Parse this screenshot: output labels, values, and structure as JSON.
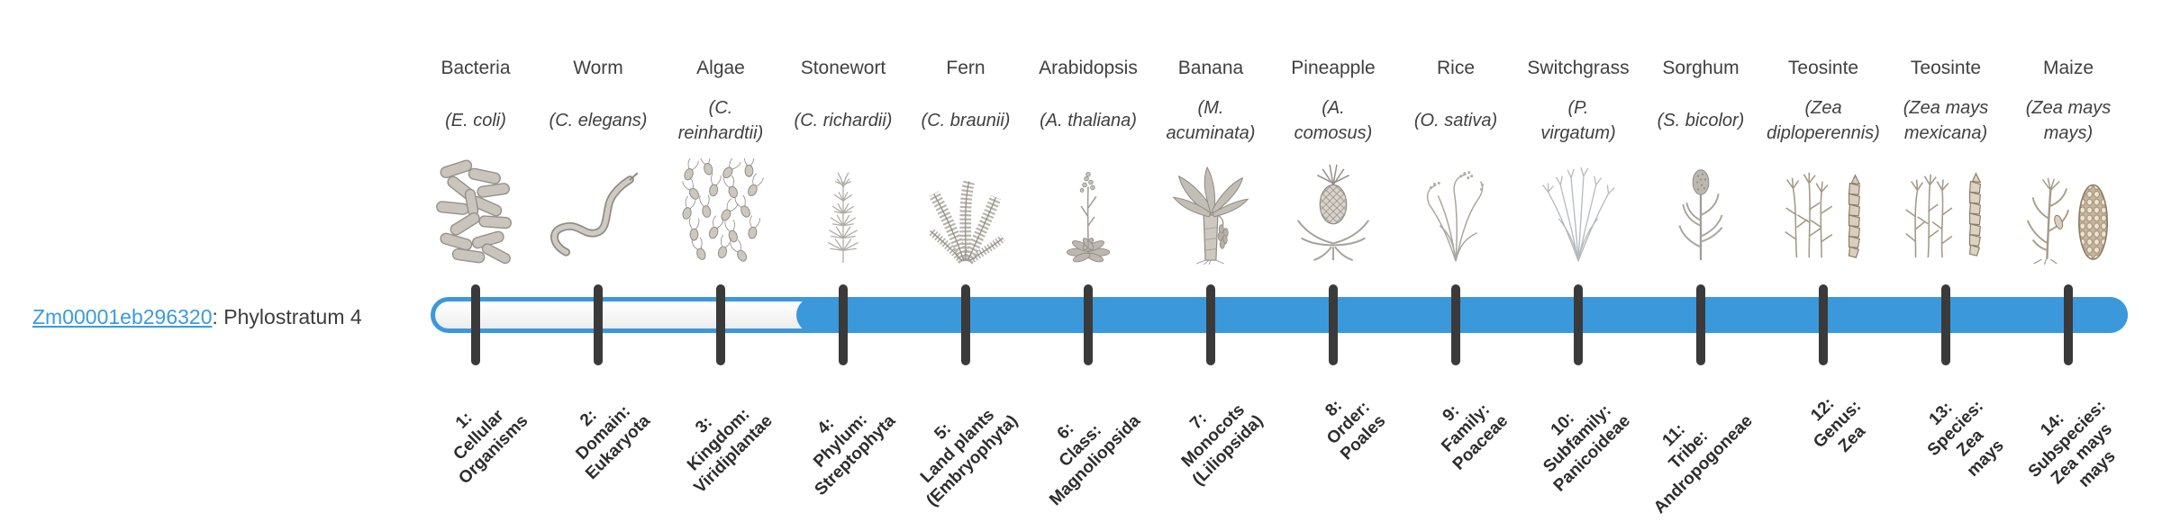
{
  "gene": {
    "id_link": "Zm00001eb296320",
    "suffix": ": Phylostratum 4",
    "link_color": "#3b9ade",
    "text_color": "#3d3d3d"
  },
  "timeline": {
    "bar_color": "#3b99db",
    "tick_color": "#3a3a3a",
    "filled_from_stratum": 4,
    "strata_count": 14
  },
  "organisms": [
    {
      "common": "Bacteria",
      "scientific_lines": [
        "(E. coli)"
      ],
      "icon": "bacteria",
      "stratum": {
        "lines": [
          "1:",
          "Cellular",
          "Organisms"
        ]
      }
    },
    {
      "common": "Worm",
      "scientific_lines": [
        "(C. elegans)"
      ],
      "icon": "worm",
      "stratum": {
        "lines": [
          "2:",
          "Domain:",
          "Eukaryota"
        ]
      }
    },
    {
      "common": "Algae",
      "scientific_lines": [
        "(C.",
        "reinhardtii)"
      ],
      "icon": "algae",
      "stratum": {
        "lines": [
          "3:",
          "Kingdom:",
          "Viridiplantae"
        ]
      }
    },
    {
      "common": "Stonewort",
      "scientific_lines": [
        "(C. richardii)"
      ],
      "icon": "stonewort",
      "stratum": {
        "lines": [
          "4:",
          "Phylum:",
          "Streptophyta"
        ]
      }
    },
    {
      "common": "Fern",
      "scientific_lines": [
        "(C. braunii)"
      ],
      "icon": "fern",
      "stratum": {
        "lines": [
          "5:",
          "Land plants",
          "(Embryophyta)"
        ]
      }
    },
    {
      "common": "Arabidopsis",
      "scientific_lines": [
        "(A. thaliana)"
      ],
      "icon": "arabidopsis",
      "stratum": {
        "lines": [
          "6:",
          "Class:",
          "Magnoliopsida"
        ]
      }
    },
    {
      "common": "Banana",
      "scientific_lines": [
        "(M.",
        "acuminata)"
      ],
      "icon": "banana",
      "stratum": {
        "lines": [
          "7:",
          "Monocots",
          "(Liliopsida)"
        ]
      }
    },
    {
      "common": "Pineapple",
      "scientific_lines": [
        "(A.",
        "comosus)"
      ],
      "icon": "pineapple",
      "stratum": {
        "lines": [
          "8:",
          "Order:",
          "Poales"
        ]
      }
    },
    {
      "common": "Rice",
      "scientific_lines": [
        "(O. sativa)"
      ],
      "icon": "rice",
      "stratum": {
        "lines": [
          "9:",
          "Family:",
          "Poaceae"
        ]
      }
    },
    {
      "common": "Switchgrass",
      "scientific_lines": [
        "(P.",
        "virgatum)"
      ],
      "icon": "switchgrass",
      "stratum": {
        "lines": [
          "10:",
          "Subfamily:",
          "Panicoideae"
        ]
      }
    },
    {
      "common": "Sorghum",
      "scientific_lines": [
        "(S. bicolor)"
      ],
      "icon": "sorghum",
      "stratum": {
        "lines": [
          "11:",
          "Tribe:",
          "Andropogoneae"
        ]
      }
    },
    {
      "common": "Teosinte",
      "scientific_lines": [
        "(Zea",
        "diploperennis)"
      ],
      "icon": "teosinte-diplo",
      "stratum": {
        "lines": [
          "12:",
          "Genus:",
          "Zea"
        ]
      }
    },
    {
      "common": "Teosinte",
      "scientific_lines": [
        "(Zea mays",
        "mexicana)"
      ],
      "icon": "teosinte-mex",
      "stratum": {
        "lines": [
          "13:",
          "Species:",
          "Zea",
          "mays"
        ]
      }
    },
    {
      "common": "Maize",
      "scientific_lines": [
        "(Zea mays",
        "mays)"
      ],
      "icon": "maize",
      "stratum": {
        "lines": [
          "14:",
          "Subspecies:",
          "Zea mays",
          "mays"
        ]
      }
    }
  ]
}
